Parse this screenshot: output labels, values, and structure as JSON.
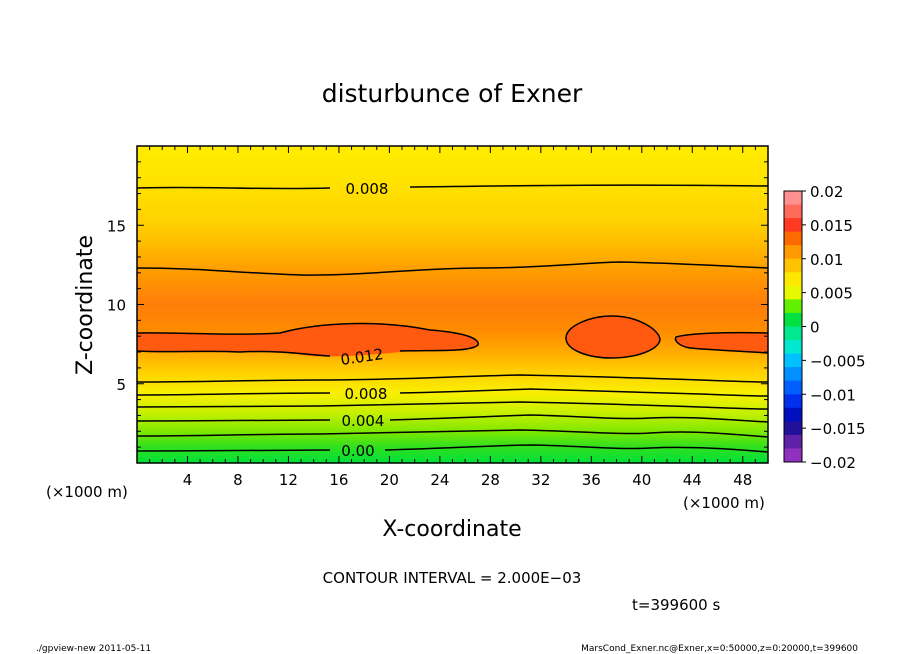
{
  "chart_data": {
    "type": "contour",
    "title": "disturbunce of Exner",
    "xlabel": "X-coordinate",
    "ylabel": "Z-coordinate",
    "x_unit": "(×1000 m)",
    "y_unit": "(×1000 m)",
    "xlim": [
      0,
      50
    ],
    "ylim": [
      0,
      20
    ],
    "x_ticks": [
      4,
      8,
      12,
      16,
      20,
      24,
      28,
      32,
      36,
      40,
      44,
      48
    ],
    "y_ticks": [
      5,
      10,
      15
    ],
    "colorbar": {
      "range": [
        -0.02,
        0.02
      ],
      "ticks": [
        "0.02",
        "0.015",
        "0.01",
        "0.005",
        "0",
        "−0.005",
        "−0.01",
        "−0.015",
        "−0.02"
      ]
    },
    "contour_labels": [
      "0.008",
      "0.012",
      "0.008",
      "0.004",
      "0.00"
    ],
    "contour_interval_text": "CONTOUR INTERVAL = 2.000E−03",
    "time_text": "t=399600  s"
  },
  "footer": {
    "left": "./gpview-new   2011-05-11",
    "right": "MarsCond_Exner.nc@Exner,x=0:50000,z=0:20000,t=399600"
  },
  "colors": {
    "band_red": "#ff4a14",
    "band_orange": "#ff8c00",
    "band_yellow": "#ffe800",
    "band_green": "#00e832"
  }
}
